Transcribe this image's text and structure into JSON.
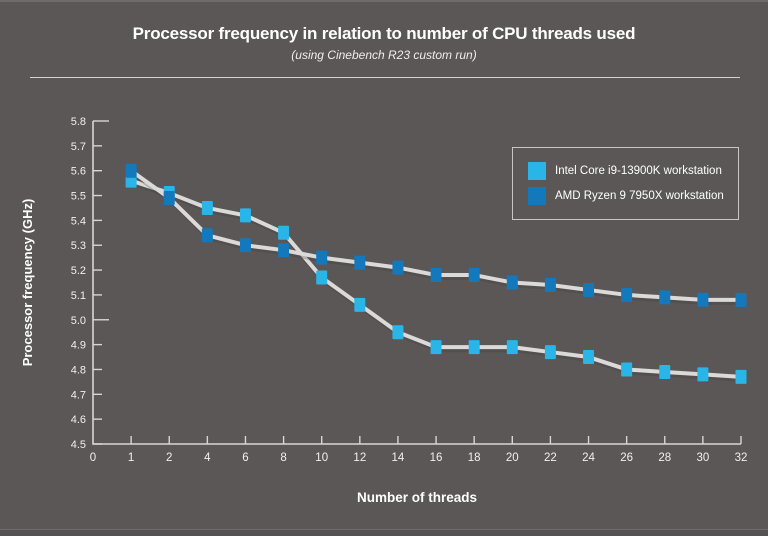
{
  "chart_data": {
    "type": "line",
    "title": "Processor frequency in relation to number of CPU threads used",
    "subtitle": "(using Cinebench R23 custom run)",
    "xlabel": "Number of threads",
    "ylabel": "Processor frequency (GHz)",
    "x_categories": [
      1,
      2,
      4,
      6,
      8,
      10,
      12,
      14,
      16,
      18,
      20,
      22,
      24,
      26,
      28,
      30,
      32
    ],
    "x_axis_labels": [
      "0",
      "1",
      "2",
      "4",
      "6",
      "8",
      "10",
      "12",
      "14",
      "16",
      "18",
      "20",
      "22",
      "24",
      "26",
      "28",
      "30",
      "32"
    ],
    "ylim": [
      4.5,
      5.8
    ],
    "ytick_step": 0.1,
    "grid": false,
    "legend_position": "top-right",
    "series": [
      {
        "name": "Intel Core i9-13900K workstation",
        "color": "#29b5e8",
        "values": [
          5.56,
          5.51,
          5.45,
          5.42,
          5.35,
          5.17,
          5.06,
          4.95,
          4.89,
          4.89,
          4.89,
          4.87,
          4.85,
          4.8,
          4.79,
          4.78,
          4.77
        ]
      },
      {
        "name": "AMD Ryzen 9 7950X workstation",
        "color": "#1478bc",
        "values": [
          5.6,
          5.49,
          5.34,
          5.3,
          5.28,
          5.25,
          5.23,
          5.21,
          5.18,
          5.18,
          5.15,
          5.14,
          5.12,
          5.1,
          5.09,
          5.08,
          5.08
        ]
      }
    ]
  },
  "style": {
    "background": "#5a5756",
    "axis_color": "#d8d6d5",
    "line_color": "#dcdad9",
    "tick_label_color": "#f1f0ef",
    "text_color": "#ffffff"
  }
}
